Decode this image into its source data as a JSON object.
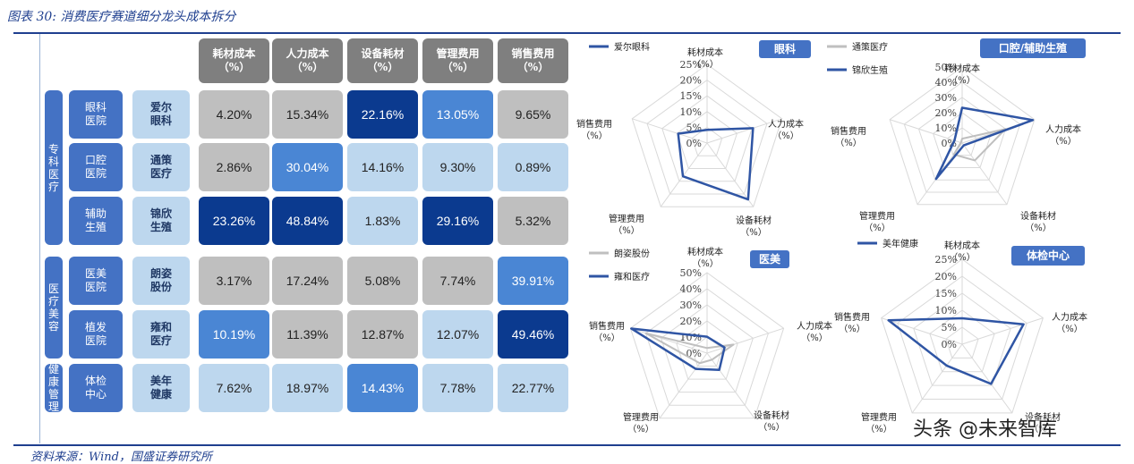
{
  "figure_title": "图表 30:  消费医疗赛道细分龙头成本拆分",
  "source_text": "资料来源：Wind，国盛证券研究所",
  "watermark": "头条 @未来智库",
  "colors": {
    "header_gray": "#7f7f7f",
    "cell_gray": "#bfbfbf",
    "light_blue": "#bdd7ee",
    "mid_blue": "#4a86d4",
    "dark_blue": "#0b3a8f",
    "group_blue": "#4472c4",
    "line_dark": "#2f55a4",
    "line_light": "#bfbfbf"
  },
  "table": {
    "headers": [
      "耗材成本（%）",
      "人力成本（%）",
      "设备耗材（%）",
      "管理费用（%）",
      "销售费用（%）"
    ],
    "groups": [
      {
        "label": "专科医疗",
        "rows": [
          0,
          1,
          2
        ]
      },
      {
        "label": "医疗美容",
        "rows": [
          3,
          4
        ]
      },
      {
        "label": "健康管理",
        "rows": [
          5
        ]
      }
    ],
    "rows": [
      {
        "sub": "眼科医院",
        "company": "爱尔眼科",
        "values": [
          "4.20%",
          "15.34%",
          "22.16%",
          "13.05%",
          "9.65%"
        ],
        "shades": [
          "gray",
          "gray",
          "dark",
          "mid",
          "gray"
        ]
      },
      {
        "sub": "口腔医院",
        "company": "通策医疗",
        "values": [
          "2.86%",
          "30.04%",
          "14.16%",
          "9.30%",
          "0.89%"
        ],
        "shades": [
          "gray",
          "mid",
          "light",
          "light",
          "light"
        ]
      },
      {
        "sub": "辅助生殖",
        "company": "锦欣生殖",
        "values": [
          "23.26%",
          "48.84%",
          "1.83%",
          "29.16%",
          "5.32%"
        ],
        "shades": [
          "dark",
          "dark",
          "light",
          "dark",
          "gray"
        ]
      },
      {
        "sub": "医美医院",
        "company": "朗姿股份",
        "values": [
          "3.17%",
          "17.24%",
          "5.08%",
          "7.74%",
          "39.91%"
        ],
        "shades": [
          "gray",
          "gray",
          "gray",
          "gray",
          "mid"
        ]
      },
      {
        "sub": "植发医院",
        "company": "雍和医疗",
        "values": [
          "10.19%",
          "11.39%",
          "12.87%",
          "12.07%",
          "49.46%"
        ],
        "shades": [
          "mid",
          "gray",
          "gray",
          "light",
          "dark"
        ]
      },
      {
        "sub": "体检中心",
        "company": "美年健康",
        "values": [
          "7.62%",
          "18.97%",
          "14.43%",
          "7.78%",
          "22.77%"
        ],
        "shades": [
          "light",
          "light",
          "mid",
          "light",
          "light"
        ]
      }
    ]
  },
  "chart_data": [
    {
      "type": "radar",
      "title": "眼科",
      "axes": [
        "耗材成本（%）",
        "人力成本（%）",
        "设备耗材（%）",
        "管理费用（%）",
        "销售费用（%）"
      ],
      "ticks": [
        "0%",
        "5%",
        "10%",
        "15%",
        "20%",
        "25%"
      ],
      "rmax": 25,
      "legend": "top-left",
      "series": [
        {
          "name": "爱尔眼科",
          "values": [
            4.2,
            15.34,
            22.16,
            13.05,
            9.65
          ],
          "color": "#2f55a4"
        }
      ]
    },
    {
      "type": "radar",
      "title": "口腔/辅助生殖",
      "axes": [
        "耗材成本（%）",
        "人力成本（%）",
        "设备耗材（%）",
        "管理费用（%）",
        "销售费用（%）"
      ],
      "ticks": [
        "0%",
        "10%",
        "20%",
        "30%",
        "40%",
        "50%"
      ],
      "rmax": 50,
      "legend": "top-left",
      "series": [
        {
          "name": "通策医疗",
          "values": [
            2.86,
            30.04,
            14.16,
            9.3,
            0.89
          ],
          "color": "#bfbfbf"
        },
        {
          "name": "锦欣生殖",
          "values": [
            23.26,
            48.84,
            1.83,
            29.16,
            5.32
          ],
          "color": "#2f55a4"
        }
      ]
    },
    {
      "type": "radar",
      "title": "医美",
      "axes": [
        "耗材成本（%）",
        "人力成本（%）",
        "设备耗材（%）",
        "管理费用（%）",
        "销售费用（%）"
      ],
      "ticks": [
        "0%",
        "10%",
        "20%",
        "30%",
        "40%",
        "50%"
      ],
      "rmax": 50,
      "legend": "top-left",
      "series": [
        {
          "name": "朗姿股份",
          "values": [
            3.17,
            17.24,
            5.08,
            7.74,
            39.91
          ],
          "color": "#bfbfbf"
        },
        {
          "name": "雍和医疗",
          "values": [
            10.19,
            11.39,
            12.87,
            12.07,
            49.46
          ],
          "color": "#2f55a4"
        }
      ]
    },
    {
      "type": "radar",
      "title": "体检中心",
      "axes": [
        "耗材成本（%）",
        "人力成本（%）",
        "设备耗材（%）",
        "管理费用（%）",
        "销售费用（%）"
      ],
      "ticks": [
        "0%",
        "5%",
        "10%",
        "15%",
        "20%",
        "25%"
      ],
      "rmax": 25,
      "legend": "top-left",
      "series": [
        {
          "name": "美年健康",
          "values": [
            7.62,
            18.97,
            14.43,
            7.78,
            22.77
          ],
          "color": "#2f55a4"
        }
      ]
    }
  ]
}
